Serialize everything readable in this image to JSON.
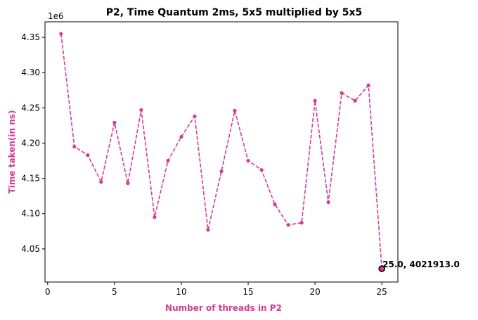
{
  "chart_data": {
    "type": "line",
    "title": "P2, Time Quantum 2ms, 5x5 multiplied by 5x5",
    "xlabel": "Number of threads in P2",
    "ylabel": "Time taken(in ns)",
    "y_offset_label": "1e6",
    "y_scale_factor": 1000000,
    "xlim": [
      -0.2,
      26.2
    ],
    "ylim": [
      4003000,
      4372000
    ],
    "x_ticks": [
      0,
      5,
      10,
      15,
      20,
      25
    ],
    "y_ticks": [
      4.05,
      4.1,
      4.15,
      4.2,
      4.25,
      4.3,
      4.35
    ],
    "grid": false,
    "color": "#d63a94",
    "line_style": "dashed",
    "series": [
      {
        "x": [
          1,
          2,
          3,
          4,
          5,
          6,
          7,
          8,
          9,
          10,
          11,
          12,
          13,
          14,
          15,
          16,
          17,
          18,
          19,
          20,
          21,
          22,
          23,
          24,
          25
        ],
        "values": [
          4355000,
          4195000,
          4183000,
          4145000,
          4229000,
          4143000,
          4247000,
          4095000,
          4175000,
          4209000,
          4238000,
          4077000,
          4160000,
          4246000,
          4175000,
          4162000,
          4113000,
          4084000,
          4087000,
          4260000,
          4116000,
          4271000,
          4260000,
          4282000,
          4021913
        ]
      }
    ],
    "highlight": {
      "x": 25,
      "y": 4021913,
      "label": "25.0, 4021913.0"
    }
  }
}
